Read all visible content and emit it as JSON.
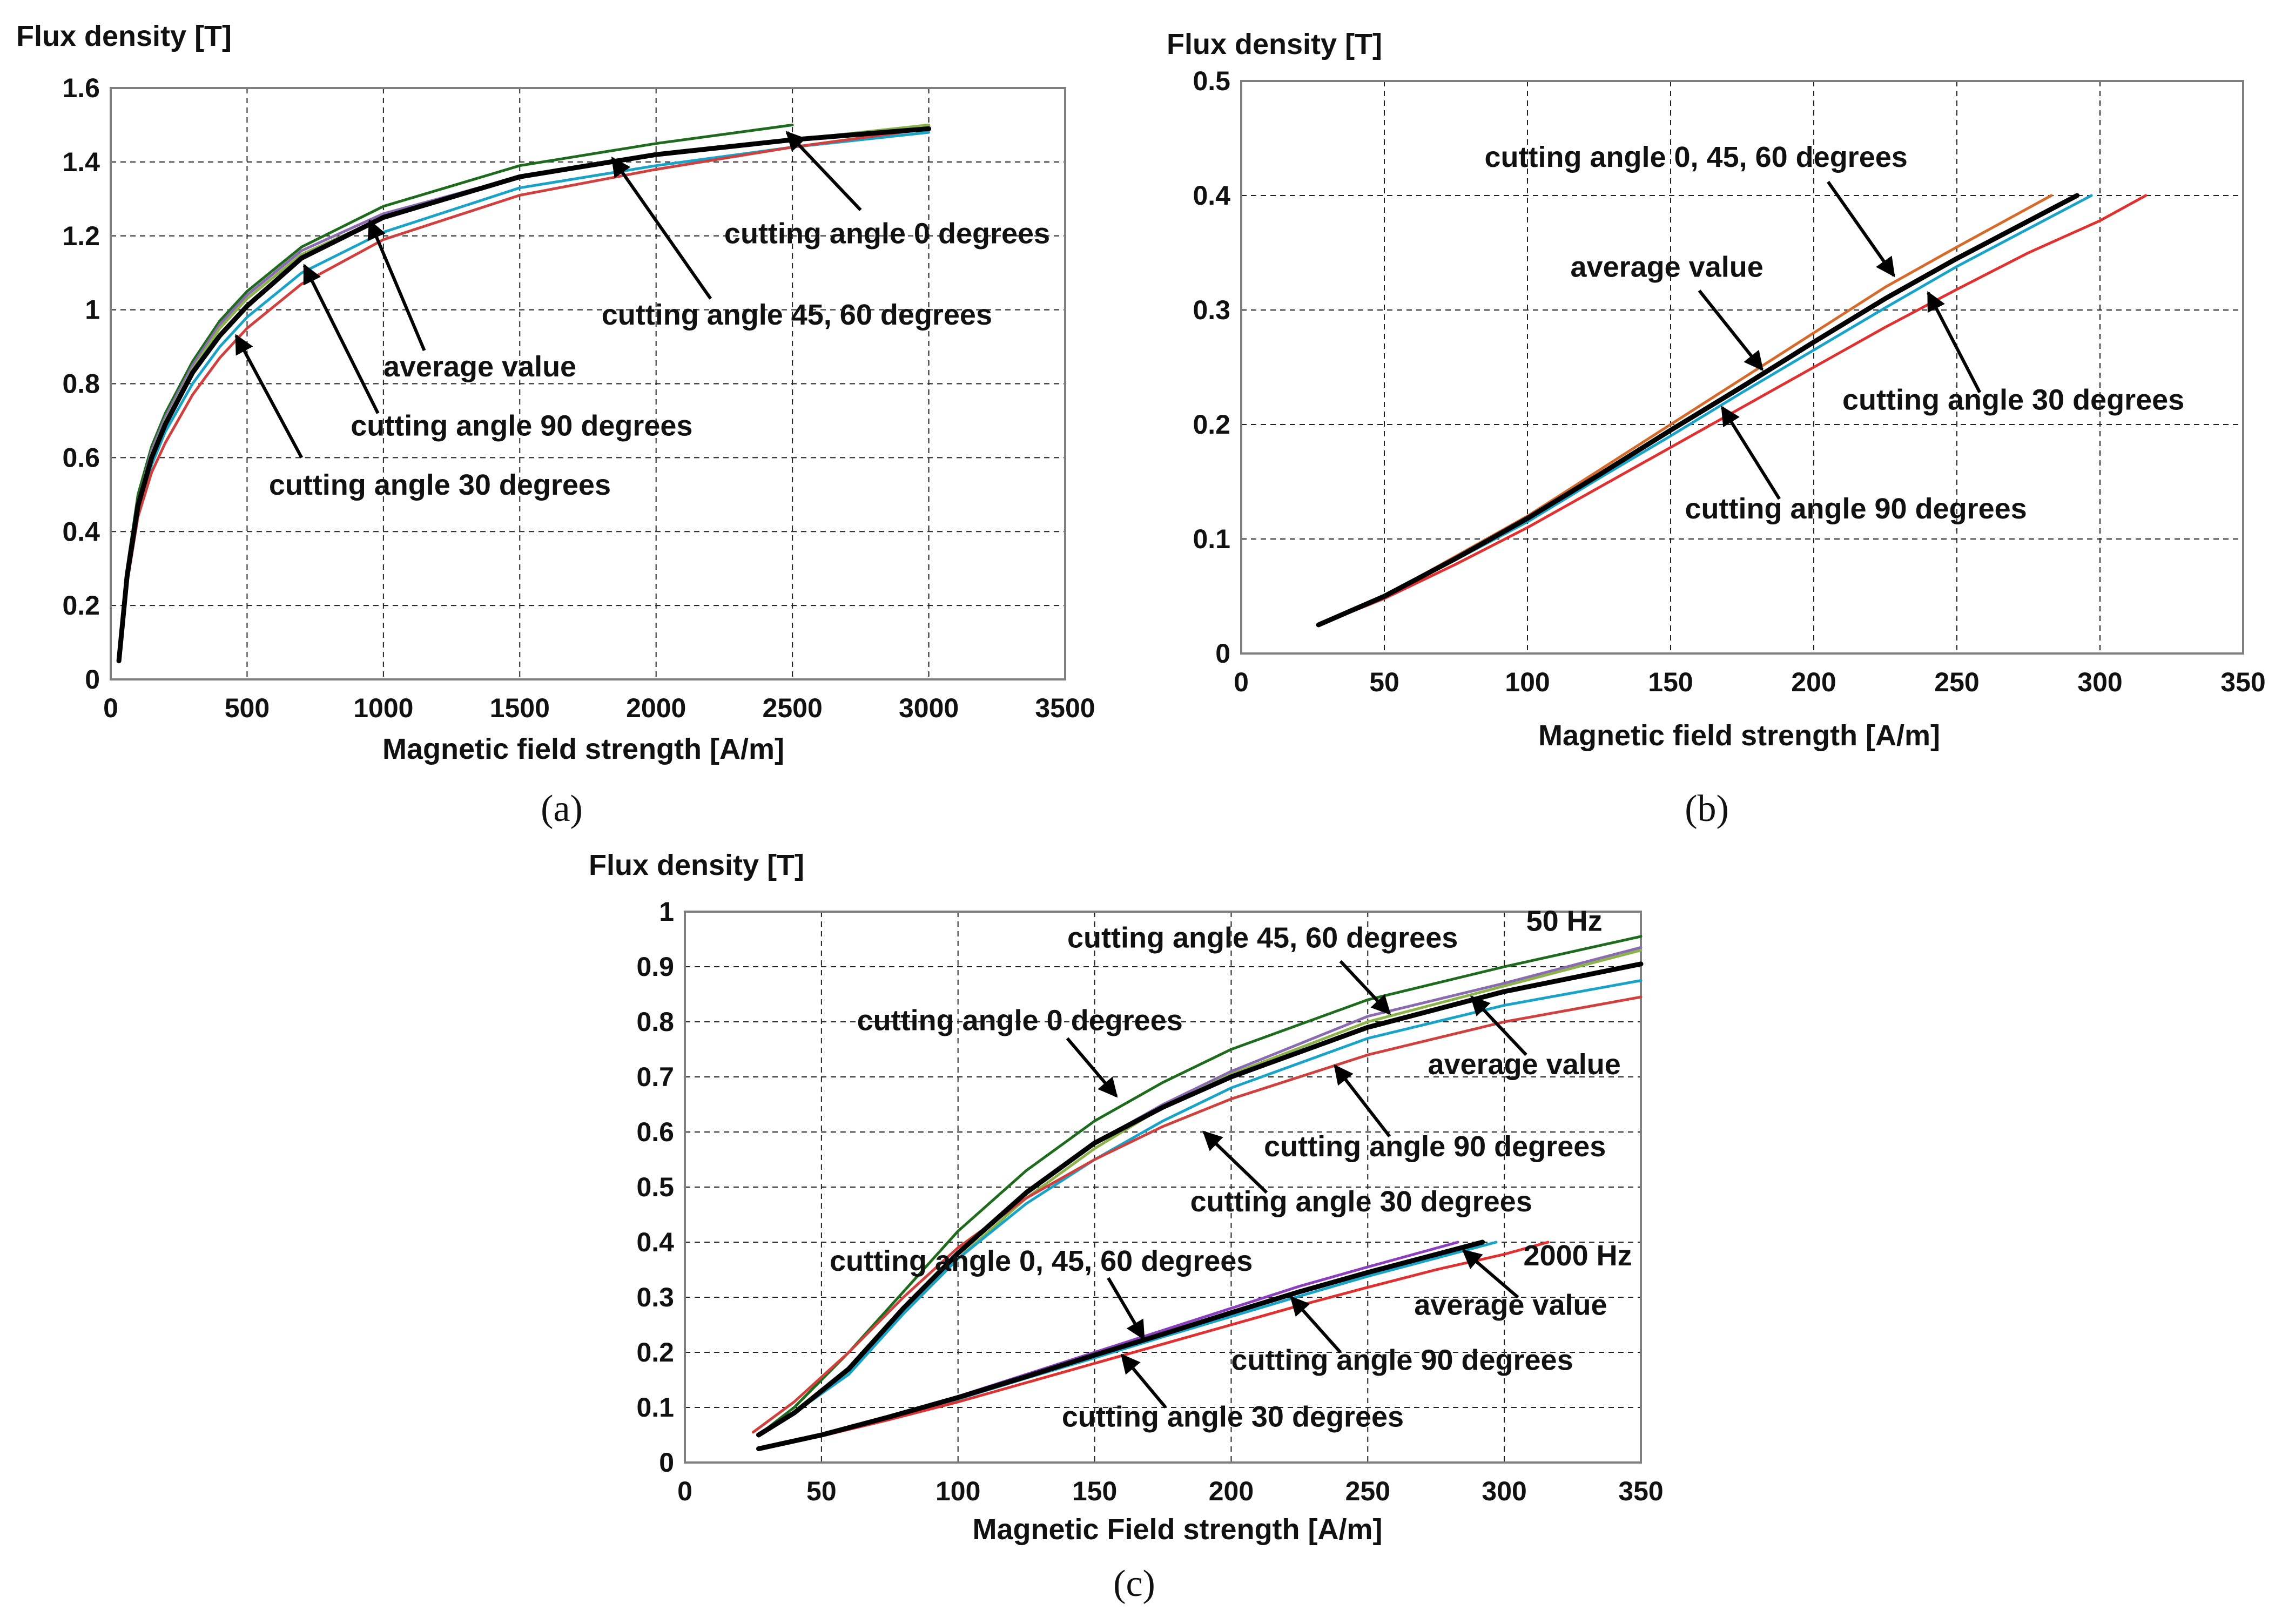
{
  "colors": {
    "cutting_angle_0": "#1e6b1e",
    "cutting_angle_45": "#8b6bb0",
    "cutting_angle_60": "#8bb34a",
    "cutting_angle_90": "#1aa3c8",
    "cutting_angle_30": "#d0403e",
    "cutting_angle_30_b": "#e03030",
    "cutting_angle_0_45_60_b": "#d56a2a",
    "average": "#000000"
  },
  "chart_data": [
    {
      "id": "a",
      "caption": "(a)",
      "type": "line",
      "ylabel": "Flux density [T]",
      "xlabel": "Magnetic field strength [A/m]",
      "xlim": [
        0,
        3500
      ],
      "ylim": [
        0,
        1.6
      ],
      "xticks": [
        "0",
        "500",
        "1000",
        "1500",
        "2000",
        "2500",
        "3000",
        "3500"
      ],
      "yticks": [
        "0",
        "0.2",
        "0.4",
        "0.6",
        "0.8",
        "1",
        "1.2",
        "1.4",
        "1.6"
      ],
      "series": [
        {
          "name": "cutting angle 0 degrees",
          "color": "#1e6b1e",
          "x": [
            30,
            60,
            100,
            150,
            200,
            300,
            400,
            500,
            700,
            1000,
            1500,
            2000,
            2500
          ],
          "y": [
            0.05,
            0.3,
            0.5,
            0.63,
            0.72,
            0.86,
            0.97,
            1.05,
            1.17,
            1.28,
            1.39,
            1.45,
            1.5
          ]
        },
        {
          "name": "cutting angle 45 degrees",
          "color": "#8b6bb0",
          "x": [
            30,
            60,
            100,
            150,
            200,
            300,
            400,
            500,
            700,
            1000,
            1500,
            2000,
            2500,
            3000
          ],
          "y": [
            0.05,
            0.28,
            0.48,
            0.62,
            0.71,
            0.85,
            0.96,
            1.04,
            1.16,
            1.26,
            1.36,
            1.42,
            1.46,
            1.5
          ]
        },
        {
          "name": "cutting angle 60 degrees",
          "color": "#8bb34a",
          "x": [
            30,
            60,
            100,
            150,
            200,
            300,
            400,
            500,
            700,
            1000,
            1500,
            2000,
            2500,
            3000
          ],
          "y": [
            0.05,
            0.28,
            0.48,
            0.61,
            0.7,
            0.84,
            0.95,
            1.03,
            1.15,
            1.25,
            1.36,
            1.42,
            1.46,
            1.5
          ]
        },
        {
          "name": "cutting angle 90 degrees",
          "color": "#1aa3c8",
          "x": [
            30,
            60,
            100,
            150,
            200,
            300,
            400,
            500,
            700,
            1000,
            1500,
            2000,
            2500,
            3000
          ],
          "y": [
            0.05,
            0.27,
            0.45,
            0.58,
            0.67,
            0.8,
            0.9,
            0.98,
            1.1,
            1.21,
            1.33,
            1.39,
            1.44,
            1.48
          ]
        },
        {
          "name": "cutting angle 30 degrees",
          "color": "#d0403e",
          "x": [
            30,
            60,
            100,
            150,
            200,
            300,
            400,
            500,
            700,
            1000,
            1500,
            2000,
            2500,
            3000
          ],
          "y": [
            0.05,
            0.26,
            0.44,
            0.56,
            0.64,
            0.77,
            0.87,
            0.95,
            1.07,
            1.19,
            1.31,
            1.38,
            1.44,
            1.49
          ]
        },
        {
          "name": "average value",
          "color": "#000000",
          "x": [
            30,
            60,
            100,
            150,
            200,
            300,
            400,
            500,
            700,
            1000,
            1500,
            2000,
            2500,
            3000
          ],
          "y": [
            0.05,
            0.28,
            0.47,
            0.6,
            0.69,
            0.83,
            0.93,
            1.01,
            1.14,
            1.25,
            1.36,
            1.42,
            1.46,
            1.49
          ]
        }
      ],
      "annotations": [
        {
          "text": "cutting angle 0 degrees",
          "text_at": [
            2250,
            1.18
          ],
          "arrow_from": [
            2750,
            1.27
          ],
          "arrow_to": [
            2480,
            1.48
          ]
        },
        {
          "text": "cutting angle 45, 60 degrees",
          "text_at": [
            1800,
            0.96
          ],
          "arrow_from": [
            2200,
            1.03
          ],
          "arrow_to": [
            1840,
            1.41
          ]
        },
        {
          "text": "average value",
          "text_at": [
            1000,
            0.82
          ],
          "arrow_from": [
            1150,
            0.89
          ],
          "arrow_to": [
            950,
            1.24
          ]
        },
        {
          "text": "cutting angle 90 degrees",
          "text_at": [
            880,
            0.66
          ],
          "arrow_from": [
            980,
            0.72
          ],
          "arrow_to": [
            710,
            1.12
          ]
        },
        {
          "text": "cutting angle 30 degrees",
          "text_at": [
            580,
            0.5
          ],
          "arrow_from": [
            700,
            0.6
          ],
          "arrow_to": [
            460,
            0.93
          ]
        }
      ]
    },
    {
      "id": "b",
      "caption": "(b)",
      "type": "line",
      "ylabel": "Flux density [T]",
      "xlabel": "Magnetic field strength [A/m]",
      "xlim": [
        0,
        350
      ],
      "ylim": [
        0,
        0.5
      ],
      "xticks": [
        "0",
        "50",
        "100",
        "150",
        "200",
        "250",
        "300",
        "350"
      ],
      "yticks": [
        "0",
        "0.1",
        "0.2",
        "0.3",
        "0.4",
        "0.5"
      ],
      "series": [
        {
          "name": "cutting angle 0, 45, 60 degrees",
          "color": "#d56a2a",
          "x": [
            27,
            50,
            75,
            100,
            125,
            150,
            175,
            200,
            225,
            250,
            283
          ],
          "y": [
            0.025,
            0.05,
            0.085,
            0.12,
            0.16,
            0.2,
            0.24,
            0.28,
            0.32,
            0.355,
            0.4
          ]
        },
        {
          "name": "cutting angle 90 degrees",
          "color": "#1aa3c8",
          "x": [
            27,
            50,
            75,
            100,
            125,
            150,
            175,
            200,
            225,
            250,
            297
          ],
          "y": [
            0.025,
            0.05,
            0.082,
            0.115,
            0.153,
            0.19,
            0.228,
            0.265,
            0.302,
            0.338,
            0.4
          ]
        },
        {
          "name": "cutting angle 30 degrees",
          "color": "#e03030",
          "x": [
            27,
            50,
            75,
            100,
            125,
            150,
            175,
            200,
            225,
            250,
            275,
            300,
            316
          ],
          "y": [
            0.025,
            0.048,
            0.078,
            0.11,
            0.145,
            0.18,
            0.215,
            0.25,
            0.285,
            0.318,
            0.35,
            0.378,
            0.4
          ]
        },
        {
          "name": "average value",
          "color": "#000000",
          "x": [
            27,
            50,
            75,
            100,
            125,
            150,
            175,
            200,
            225,
            250,
            292
          ],
          "y": [
            0.025,
            0.05,
            0.083,
            0.118,
            0.156,
            0.195,
            0.233,
            0.272,
            0.31,
            0.345,
            0.4
          ]
        }
      ],
      "annotations": [
        {
          "text": "cutting angle 0, 45, 60 degrees",
          "text_at": [
            85,
            0.425
          ],
          "arrow_from": [
            205,
            0.412
          ],
          "arrow_to": [
            228,
            0.33
          ]
        },
        {
          "text": "average value",
          "text_at": [
            115,
            0.329
          ],
          "arrow_from": [
            160,
            0.317
          ],
          "arrow_to": [
            182,
            0.248
          ]
        },
        {
          "text": "cutting angle 30 degrees",
          "text_at": [
            210,
            0.213
          ],
          "arrow_from": [
            258,
            0.228
          ],
          "arrow_to": [
            240,
            0.315
          ]
        },
        {
          "text": "cutting angle 90 degrees",
          "text_at": [
            155,
            0.118
          ],
          "arrow_from": [
            188,
            0.135
          ],
          "arrow_to": [
            168,
            0.215
          ]
        }
      ]
    },
    {
      "id": "c",
      "caption": "(c)",
      "type": "line",
      "ylabel": "Flux density [T]",
      "xlabel": "Magnetic Field strength [A/m]",
      "xlim": [
        0,
        350
      ],
      "ylim": [
        0,
        1
      ],
      "xticks": [
        "0",
        "50",
        "100",
        "150",
        "200",
        "250",
        "300",
        "350"
      ],
      "yticks": [
        "0",
        "0.1",
        "0.2",
        "0.3",
        "0.4",
        "0.5",
        "0.6",
        "0.7",
        "0.8",
        "0.9",
        "1"
      ],
      "labels": [
        "50 Hz",
        "2000 Hz"
      ],
      "series": [
        {
          "name": "cutting angle 0 degrees (50 Hz)",
          "color": "#1e6b1e",
          "x": [
            27,
            40,
            60,
            80,
            100,
            125,
            150,
            175,
            200,
            250,
            300,
            350
          ],
          "y": [
            0.05,
            0.1,
            0.2,
            0.31,
            0.42,
            0.53,
            0.62,
            0.69,
            0.75,
            0.84,
            0.9,
            0.955
          ]
        },
        {
          "name": "cutting angle 45 degrees (50 Hz)",
          "color": "#8b6bb0",
          "x": [
            27,
            40,
            60,
            80,
            100,
            125,
            150,
            175,
            200,
            250,
            300,
            350
          ],
          "y": [
            0.05,
            0.09,
            0.17,
            0.28,
            0.38,
            0.49,
            0.58,
            0.65,
            0.71,
            0.81,
            0.87,
            0.935
          ]
        },
        {
          "name": "cutting angle 60 degrees (50 Hz)",
          "color": "#8bb34a",
          "x": [
            27,
            40,
            60,
            80,
            100,
            125,
            150,
            175,
            200,
            250,
            300,
            350
          ],
          "y": [
            0.05,
            0.09,
            0.165,
            0.27,
            0.37,
            0.48,
            0.57,
            0.645,
            0.705,
            0.8,
            0.865,
            0.93
          ]
        },
        {
          "name": "cutting angle 90 degrees (50 Hz)",
          "color": "#1aa3c8",
          "x": [
            27,
            40,
            60,
            80,
            100,
            125,
            150,
            175,
            200,
            250,
            300,
            350
          ],
          "y": [
            0.05,
            0.09,
            0.16,
            0.27,
            0.37,
            0.47,
            0.55,
            0.62,
            0.68,
            0.77,
            0.83,
            0.875
          ]
        },
        {
          "name": "cutting angle 30 degrees (50 Hz)",
          "color": "#d0403e",
          "x": [
            25,
            40,
            60,
            80,
            100,
            125,
            150,
            175,
            200,
            250,
            300,
            350
          ],
          "y": [
            0.055,
            0.11,
            0.2,
            0.3,
            0.39,
            0.48,
            0.55,
            0.61,
            0.66,
            0.74,
            0.8,
            0.845
          ]
        },
        {
          "name": "average value (50 Hz)",
          "color": "#000000",
          "x": [
            27,
            40,
            60,
            80,
            100,
            125,
            150,
            175,
            200,
            250,
            300,
            350
          ],
          "y": [
            0.05,
            0.09,
            0.17,
            0.28,
            0.38,
            0.49,
            0.58,
            0.645,
            0.7,
            0.79,
            0.855,
            0.905
          ]
        },
        {
          "name": "cutting angle 0, 45, 60 degrees (2000 Hz)",
          "color": "#8b3fbf",
          "x": [
            27,
            50,
            75,
            100,
            125,
            150,
            175,
            200,
            225,
            250,
            283
          ],
          "y": [
            0.025,
            0.05,
            0.085,
            0.12,
            0.16,
            0.2,
            0.24,
            0.28,
            0.32,
            0.355,
            0.4
          ]
        },
        {
          "name": "cutting angle 90 degrees (2000 Hz)",
          "color": "#1aa3c8",
          "x": [
            27,
            50,
            75,
            100,
            125,
            150,
            175,
            200,
            225,
            250,
            297
          ],
          "y": [
            0.025,
            0.05,
            0.082,
            0.115,
            0.153,
            0.19,
            0.228,
            0.265,
            0.302,
            0.338,
            0.4
          ]
        },
        {
          "name": "cutting angle 30 degrees (2000 Hz)",
          "color": "#e03030",
          "x": [
            27,
            50,
            75,
            100,
            125,
            150,
            175,
            200,
            225,
            250,
            275,
            300,
            316
          ],
          "y": [
            0.025,
            0.048,
            0.078,
            0.11,
            0.145,
            0.18,
            0.215,
            0.25,
            0.285,
            0.318,
            0.35,
            0.378,
            0.4
          ]
        },
        {
          "name": "average value (2000 Hz)",
          "color": "#000000",
          "x": [
            27,
            50,
            75,
            100,
            125,
            150,
            175,
            200,
            225,
            250,
            292
          ],
          "y": [
            0.025,
            0.05,
            0.083,
            0.118,
            0.156,
            0.195,
            0.233,
            0.272,
            0.31,
            0.345,
            0.4
          ]
        }
      ],
      "annotations": [
        {
          "text": "cutting angle 45, 60 degrees",
          "text_at": [
            140,
            0.935
          ],
          "arrow_from": [
            240,
            0.91
          ],
          "arrow_to": [
            258,
            0.815
          ]
        },
        {
          "text": "cutting angle 0 degrees",
          "text_at": [
            63,
            0.785
          ],
          "arrow_from": [
            140,
            0.77
          ],
          "arrow_to": [
            158,
            0.665
          ]
        },
        {
          "text": "average value",
          "text_at": [
            272,
            0.705
          ],
          "arrow_from": [
            308,
            0.74
          ],
          "arrow_to": [
            288,
            0.845
          ]
        },
        {
          "text": "cutting angle 90 degrees",
          "text_at": [
            212,
            0.556
          ],
          "arrow_from": [
            258,
            0.592
          ],
          "arrow_to": [
            238,
            0.72
          ]
        },
        {
          "text": "cutting angle 30 degrees",
          "text_at": [
            185,
            0.456
          ],
          "arrow_from": [
            213,
            0.49
          ],
          "arrow_to": [
            190,
            0.6
          ]
        },
        {
          "text": "cutting angle 0, 45, 60 degrees",
          "text_at": [
            53,
            0.348
          ],
          "arrow_from": [
            155,
            0.335
          ],
          "arrow_to": [
            168,
            0.225
          ]
        },
        {
          "text": "2000 Hz",
          "text_at": [
            307,
            0.358
          ],
          "arrow_from": null,
          "arrow_to": null
        },
        {
          "text": "50 Hz",
          "text_at": [
            308,
            0.965
          ],
          "arrow_from": null,
          "arrow_to": null
        },
        {
          "text": "average value",
          "text_at": [
            267,
            0.268
          ],
          "arrow_from": [
            305,
            0.3
          ],
          "arrow_to": [
            285,
            0.385
          ]
        },
        {
          "text": "cutting angle 90 degrees",
          "text_at": [
            200,
            0.168
          ],
          "arrow_from": [
            240,
            0.2
          ],
          "arrow_to": [
            222,
            0.3
          ]
        },
        {
          "text": "cutting angle 30 degrees",
          "text_at": [
            138,
            0.065
          ],
          "arrow_from": [
            176,
            0.1
          ],
          "arrow_to": [
            160,
            0.195
          ]
        }
      ]
    }
  ]
}
